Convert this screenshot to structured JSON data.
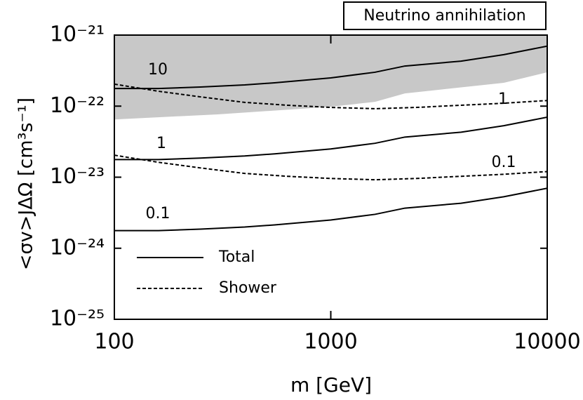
{
  "chart_data": {
    "type": "line",
    "title": "Neutrino annihilation",
    "xlabel": "m [GeV]",
    "ylabel": "<σv>JΔΩ [cm³s⁻¹]",
    "xlog": true,
    "ylog": true,
    "xlim": [
      100,
      10000
    ],
    "ylim": [
      1e-25,
      1e-21
    ],
    "xticks": [
      100,
      1000,
      10000
    ],
    "yticks": [
      {
        "value": 1e-25,
        "label": "10⁻²⁵"
      },
      {
        "value": 1e-24,
        "label": "10⁻²⁴"
      },
      {
        "value": 1e-23,
        "label": "10⁻²³"
      },
      {
        "value": 1e-22,
        "label": "10⁻²²"
      },
      {
        "value": 1e-21,
        "label": "10⁻²¹"
      }
    ],
    "band": {
      "color": "#c8c8c8",
      "x": [
        100,
        300,
        1000,
        1600,
        2200,
        6300,
        10000
      ],
      "lower": [
        6.5e-23,
        7.66e-23,
        9.8e-23,
        1.15e-22,
        1.51e-22,
        2.13e-22,
        3e-22
      ],
      "upper": [
        1e-21,
        1e-21,
        1e-21,
        1e-21,
        1e-21,
        1e-21,
        1e-21
      ]
    },
    "series": [
      {
        "name": "Total",
        "color": "#000000",
        "dashed": false,
        "curves": [
          {
            "label": "10",
            "x": [
              100,
              160,
              250,
              400,
              550,
              1000,
              1600,
              2200,
              4000,
              6300,
              10000
            ],
            "values": [
              1.77e-22,
              1.77e-22,
              1.86e-22,
              1.99e-22,
              2.13e-22,
              2.5e-22,
              3e-22,
              3.67e-22,
              4.3e-22,
              5.3e-22,
              7e-22
            ]
          },
          {
            "label": "1",
            "x": [
              100,
              160,
              250,
              400,
              550,
              1000,
              1600,
              2200,
              4000,
              6300,
              10000
            ],
            "values": [
              1.77e-23,
              1.77e-23,
              1.86e-23,
              1.99e-23,
              2.13e-23,
              2.5e-23,
              3e-23,
              3.67e-23,
              4.3e-23,
              5.3e-23,
              7e-23
            ]
          },
          {
            "label": "0.1",
            "x": [
              100,
              160,
              250,
              400,
              550,
              1000,
              1600,
              2200,
              4000,
              6300,
              10000
            ],
            "values": [
              1.77e-24,
              1.77e-24,
              1.86e-24,
              1.99e-24,
              2.13e-24,
              2.5e-24,
              3e-24,
              3.67e-24,
              4.3e-24,
              5.3e-24,
              7e-24
            ]
          }
        ]
      },
      {
        "name": "Shower",
        "color": "#000000",
        "dashed": true,
        "curves": [
          {
            "label": "1",
            "x": [
              100,
              160,
              250,
              400,
              630,
              1000,
              1600,
              2500,
              4000,
              6300,
              10000
            ],
            "values": [
              2.04e-22,
              1.62e-22,
              1.35e-22,
              1.13e-22,
              1.03e-22,
              9.6e-23,
              9.2e-23,
              9.6e-23,
              1.03e-22,
              1.1e-22,
              1.2e-22
            ]
          },
          {
            "label": "0.1",
            "x": [
              100,
              160,
              250,
              400,
              630,
              1000,
              1600,
              2500,
              4000,
              6300,
              10000
            ],
            "values": [
              2.04e-23,
              1.62e-23,
              1.35e-23,
              1.13e-23,
              1.03e-23,
              9.6e-24,
              9.2e-24,
              9.6e-24,
              1.03e-23,
              1.1e-23,
              1.2e-23
            ]
          }
        ]
      }
    ]
  }
}
